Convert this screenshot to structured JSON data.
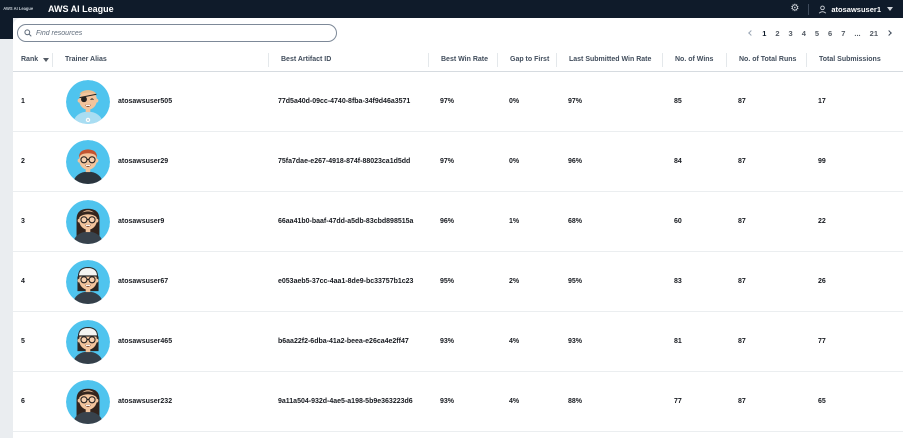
{
  "colors": {
    "topbar_bg": "#0f1b2a",
    "avatar_bg": "#4fc4ee",
    "row_divider": "#ebeef0",
    "header_text": "#414d5c",
    "body_text": "#16191f"
  },
  "topbar": {
    "logo_small": "AWS AI League",
    "app_title": "AWS AI League",
    "gear_icon": "gear-icon",
    "user_icon": "person-icon",
    "username": "atosawsuser1"
  },
  "toolbar": {
    "search_placeholder": "Find resources",
    "search_value": "",
    "pagination": {
      "pages": [
        "1",
        "2",
        "3",
        "4",
        "5",
        "6",
        "7",
        "...",
        "21"
      ],
      "current": "1",
      "prev_enabled": false,
      "next_enabled": true
    }
  },
  "table": {
    "columns": [
      "Rank",
      "Trainer Alias",
      "Best Artifact ID",
      "Best Win Rate",
      "Gap to First",
      "Last Submitted Win Rate",
      "No. of Wins",
      "No. of Total Runs",
      "Total Submissions"
    ],
    "sorted_column": "Rank",
    "sort_direction": "descending-arrow",
    "rows": [
      {
        "rank": "1",
        "alias": "atosawsuser505",
        "artifact": "77d5a40d-09cc-4740-8fba-34f9d46a3571",
        "best_win_rate": "97%",
        "gap_to_first": "0%",
        "last_submitted_win_rate": "97%",
        "wins": "85",
        "total_runs": "87",
        "submissions": "17",
        "avatar": "pirate-eyepatch"
      },
      {
        "rank": "2",
        "alias": "atosawsuser29",
        "artifact": "75fa7dae-e267-4918-874f-88023ca1d5dd",
        "best_win_rate": "97%",
        "gap_to_first": "0%",
        "last_submitted_win_rate": "96%",
        "wins": "84",
        "total_runs": "87",
        "submissions": "99",
        "avatar": "red-hair-glasses"
      },
      {
        "rank": "3",
        "alias": "atosawsuser9",
        "artifact": "66aa41b0-baaf-47dd-a5db-83cbd898515a",
        "best_win_rate": "96%",
        "gap_to_first": "1%",
        "last_submitted_win_rate": "68%",
        "wins": "60",
        "total_runs": "87",
        "submissions": "22",
        "avatar": "long-dark-hair-glasses"
      },
      {
        "rank": "4",
        "alias": "atosawsuser67",
        "artifact": "e053aeb5-37cc-4aa1-8de9-bc33757b1c23",
        "best_win_rate": "95%",
        "gap_to_first": "2%",
        "last_submitted_win_rate": "95%",
        "wins": "83",
        "total_runs": "87",
        "submissions": "26",
        "avatar": "white-headband-glasses"
      },
      {
        "rank": "5",
        "alias": "atosawsuser465",
        "artifact": "b6aa22f2-6dba-41a2-beea-e26ca4e2ff47",
        "best_win_rate": "93%",
        "gap_to_first": "4%",
        "last_submitted_win_rate": "93%",
        "wins": "81",
        "total_runs": "87",
        "submissions": "77",
        "avatar": "white-headband-glasses"
      },
      {
        "rank": "6",
        "alias": "atosawsuser232",
        "artifact": "9a11a504-932d-4ae5-a198-5b9e363223d6",
        "best_win_rate": "93%",
        "gap_to_first": "4%",
        "last_submitted_win_rate": "88%",
        "wins": "77",
        "total_runs": "87",
        "submissions": "65",
        "avatar": "long-dark-hair-glasses"
      }
    ]
  }
}
